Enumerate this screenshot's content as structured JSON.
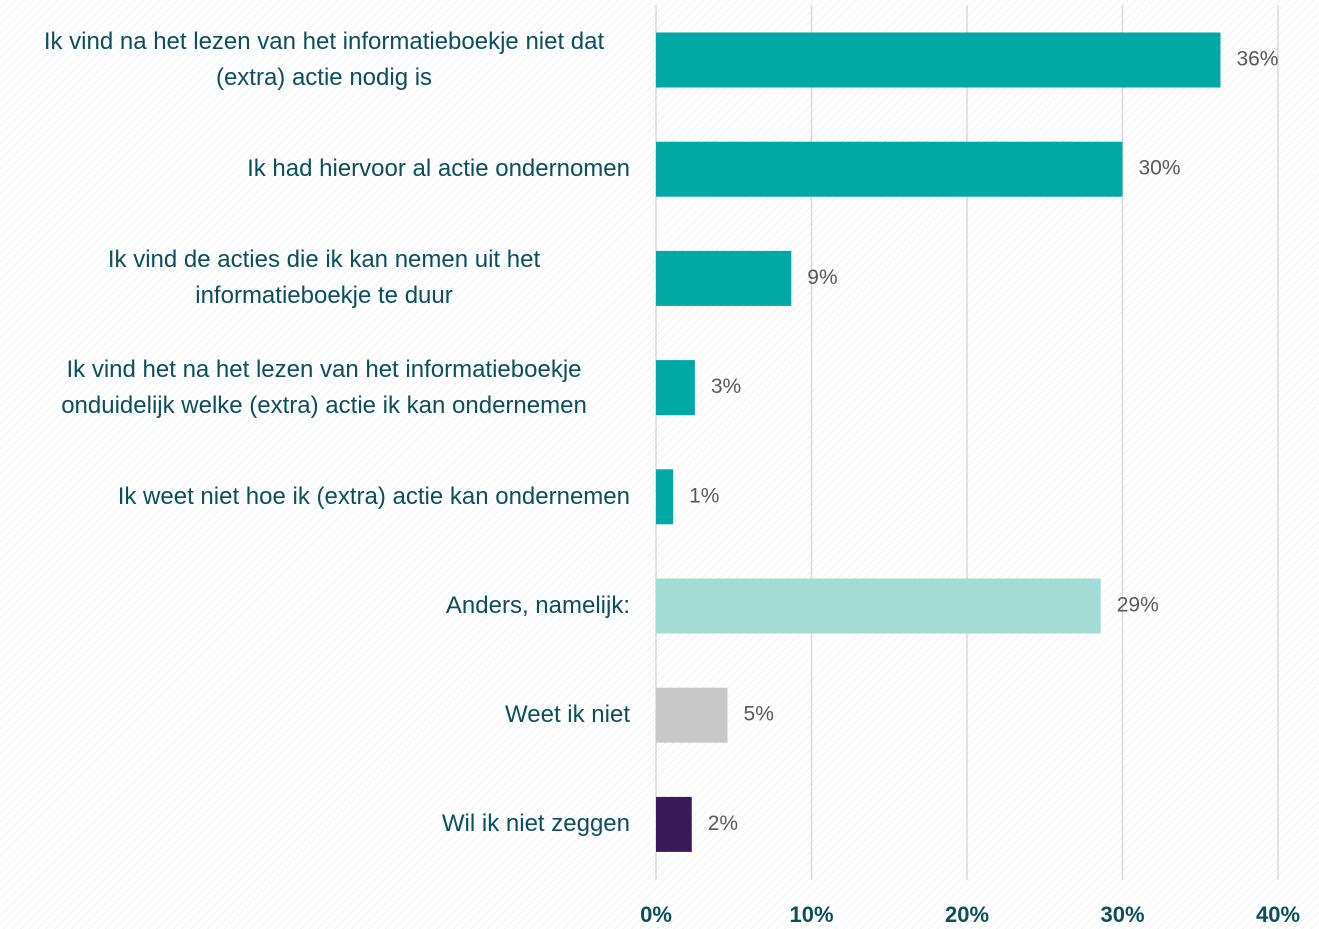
{
  "chart_data": {
    "type": "barh",
    "categories": [
      "Ik vind na het lezen van het informatieboekje niet dat (extra) actie nodig is",
      "Ik had hiervoor al actie ondernomen",
      "Ik vind de acties die ik kan nemen uit het informatieboekje te duur",
      "Ik vind het na het lezen van het informatieboekje onduidelijk welke (extra) actie ik kan ondernemen",
      "Ik weet niet hoe ik (extra) actie kan ondernemen",
      "Anders, namelijk:",
      "Weet ik niet",
      "Wil ik niet zeggen"
    ],
    "values": [
      36.3,
      30.0,
      8.7,
      2.5,
      1.1,
      28.6,
      4.6,
      2.3
    ],
    "value_labels": [
      "36%",
      "30%",
      "9%",
      "3%",
      "1%",
      "29%",
      "5%",
      "2%"
    ],
    "colors": [
      "#00a9a5",
      "#00a9a5",
      "#00a9a5",
      "#00a9a5",
      "#00a9a5",
      "#a3dcd4",
      "#c8c8c8",
      "#3b1a5a"
    ],
    "xlim": [
      0,
      40
    ],
    "xticks": [
      {
        "value": 0,
        "label": "0%"
      },
      {
        "value": 10,
        "label": "10%"
      },
      {
        "value": 20,
        "label": "20%"
      },
      {
        "value": 30,
        "label": "30%"
      },
      {
        "value": 40,
        "label": "40%"
      }
    ],
    "grid": true
  }
}
